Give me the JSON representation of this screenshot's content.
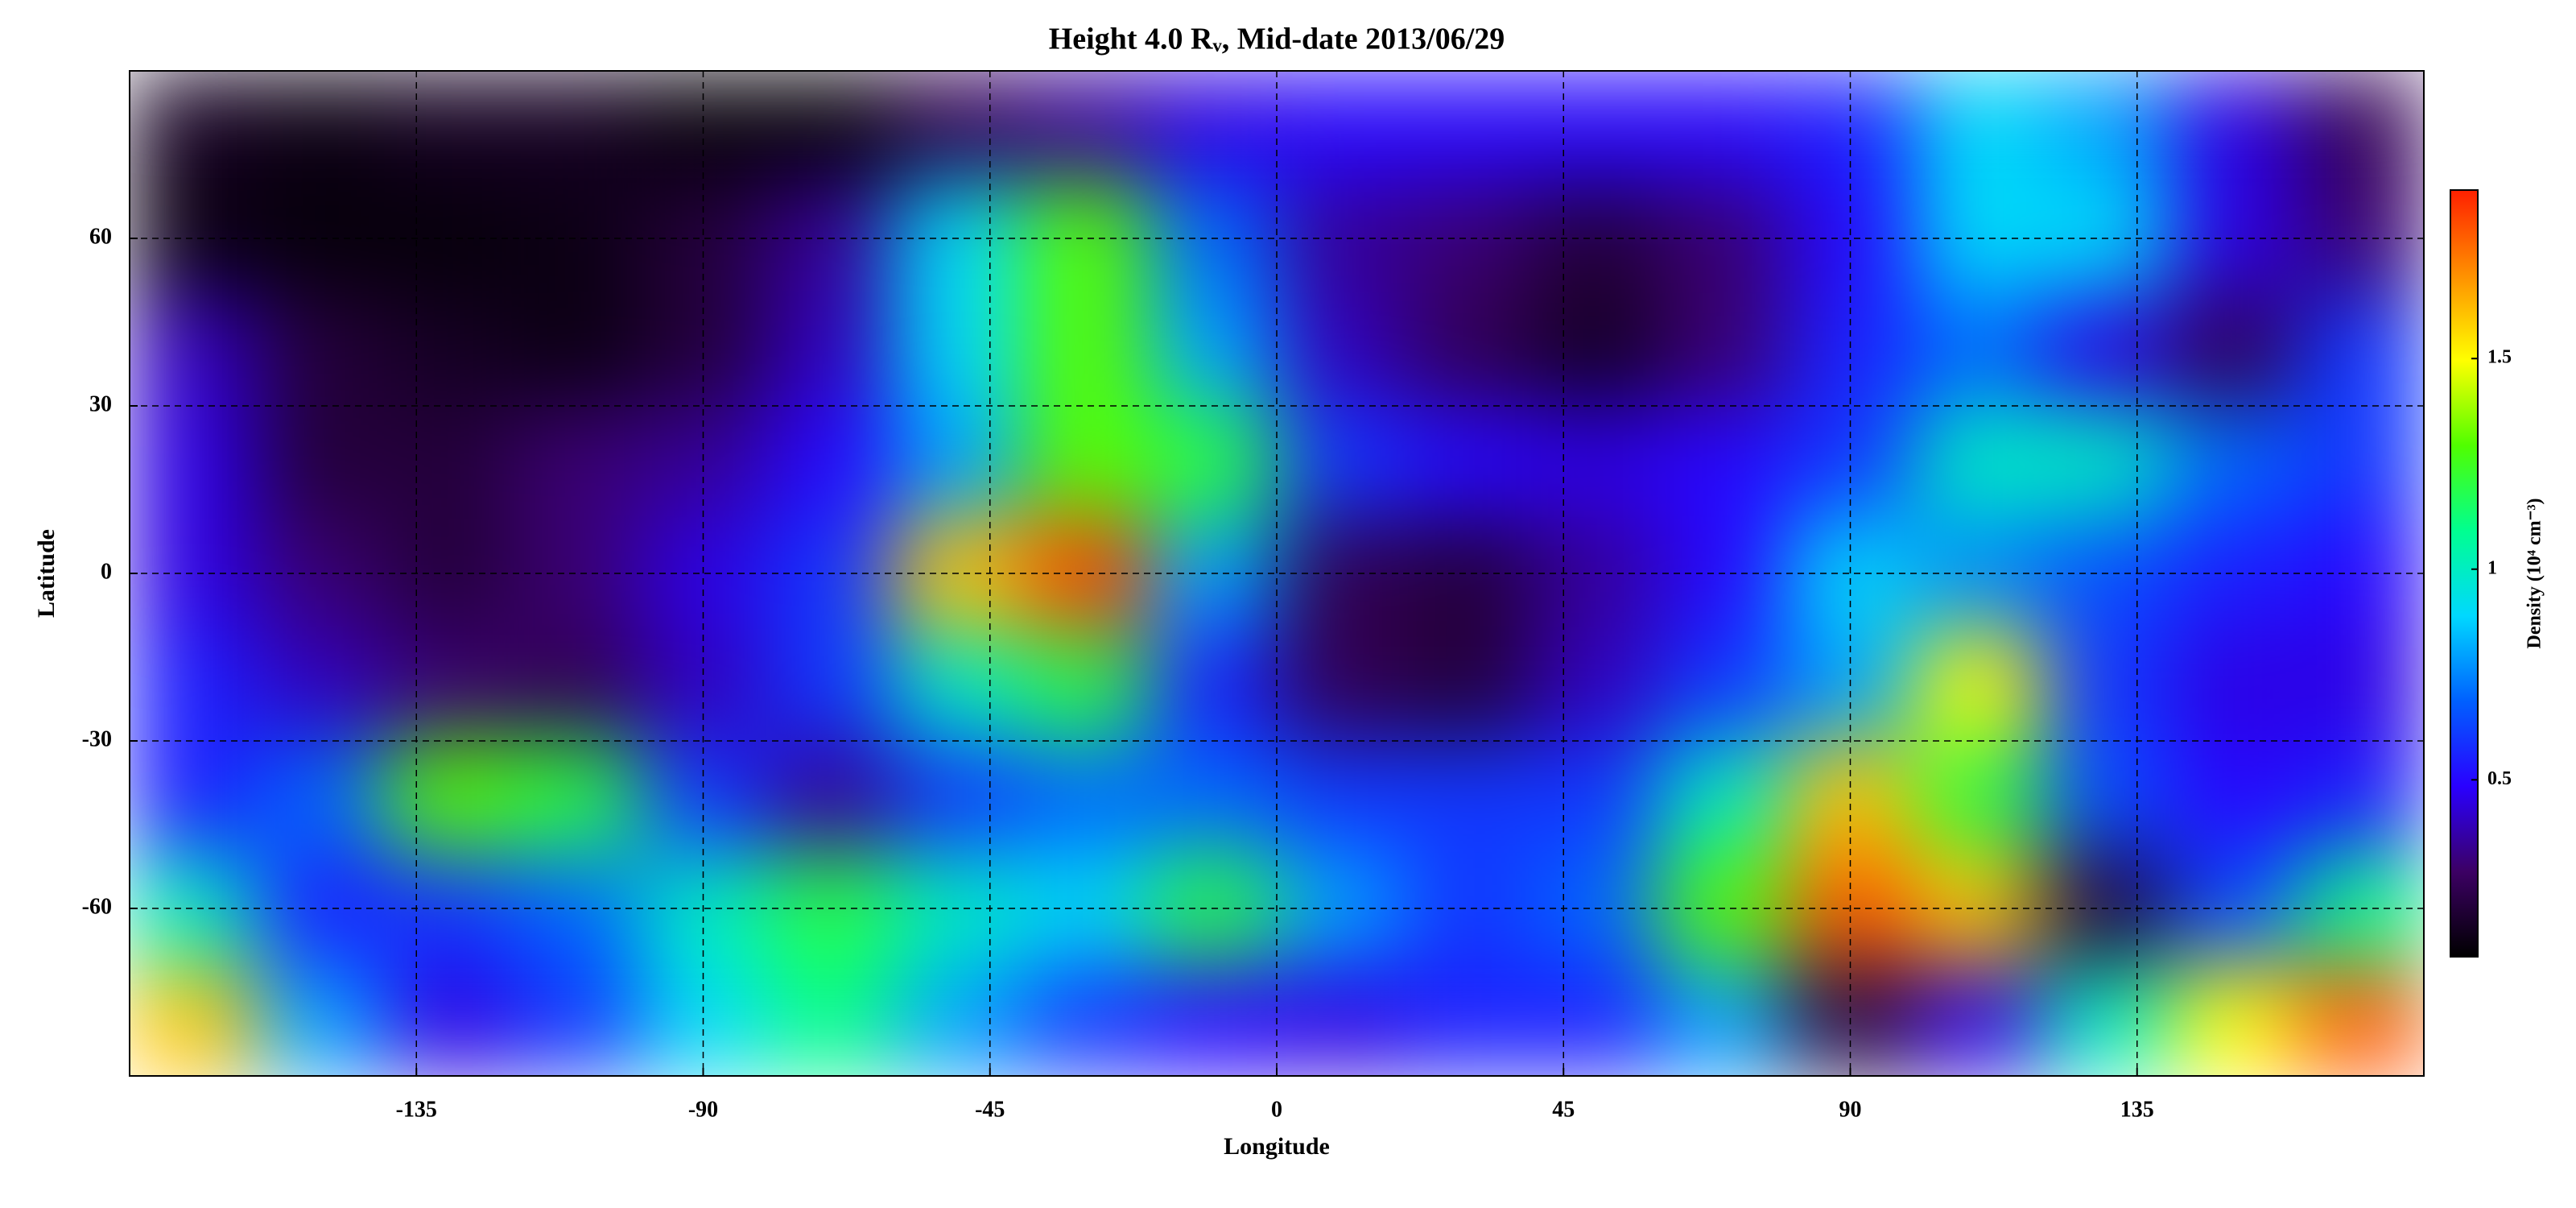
{
  "chart_data": {
    "type": "heatmap",
    "title": "Height 4.0 Rᵥ, Mid-date 2013/06/29",
    "x_label": "Longitude",
    "y_label": "Latitude",
    "colorbar_label": "Density (10⁴ cm⁻³)",
    "xlim": [
      -180,
      180
    ],
    "ylim": [
      -90,
      90
    ],
    "xticks": [
      -135,
      -90,
      -45,
      0,
      45,
      90,
      135
    ],
    "yticks": [
      -60,
      -30,
      0,
      30,
      60
    ],
    "clim": [
      0.08,
      1.9
    ],
    "cticks": [
      0.5,
      1.0,
      1.5
    ],
    "colormap": [
      "#000000",
      "#3c0064",
      "#2a00ff",
      "#0060ff",
      "#00d8ff",
      "#00ff90",
      "#50ff00",
      "#ffff00",
      "#ff9000",
      "#ff2000"
    ],
    "grid": true,
    "x": [
      -170,
      -150,
      -130,
      -110,
      -90,
      -70,
      -50,
      -30,
      -10,
      10,
      30,
      50,
      70,
      90,
      110,
      130,
      150,
      170
    ],
    "y": [
      80,
      60,
      40,
      20,
      0,
      -20,
      -40,
      -60,
      -80
    ],
    "z": [
      [
        0.15,
        0.12,
        0.15,
        0.15,
        0.1,
        0.1,
        0.25,
        0.35,
        0.45,
        0.5,
        0.5,
        0.5,
        0.5,
        0.55,
        0.9,
        0.8,
        0.45,
        0.25
      ],
      [
        0.12,
        0.1,
        0.1,
        0.12,
        0.2,
        0.35,
        0.9,
        1.3,
        0.7,
        0.35,
        0.3,
        0.2,
        0.3,
        0.5,
        0.9,
        0.9,
        0.45,
        0.3
      ],
      [
        0.4,
        0.2,
        0.15,
        0.12,
        0.2,
        0.4,
        0.9,
        1.3,
        0.8,
        0.4,
        0.25,
        0.15,
        0.3,
        0.55,
        0.7,
        0.45,
        0.25,
        0.6
      ],
      [
        0.45,
        0.2,
        0.2,
        0.3,
        0.35,
        0.5,
        0.8,
        1.3,
        1.2,
        0.6,
        0.5,
        0.45,
        0.5,
        0.6,
        1.0,
        1.0,
        0.7,
        0.6
      ],
      [
        0.45,
        0.3,
        0.2,
        0.3,
        0.45,
        0.6,
        1.6,
        1.85,
        0.8,
        0.25,
        0.2,
        0.35,
        0.5,
        0.9,
        0.75,
        0.65,
        0.55,
        0.5
      ],
      [
        0.55,
        0.4,
        0.3,
        0.25,
        0.4,
        0.6,
        1.0,
        1.2,
        0.55,
        0.25,
        0.2,
        0.4,
        0.6,
        0.8,
        1.5,
        0.6,
        0.45,
        0.45
      ],
      [
        0.55,
        0.7,
        1.3,
        1.2,
        0.6,
        0.35,
        0.6,
        0.7,
        0.7,
        0.6,
        0.6,
        0.6,
        1.0,
        1.6,
        1.2,
        0.65,
        0.5,
        0.55
      ],
      [
        1.0,
        0.55,
        0.6,
        0.7,
        1.0,
        1.2,
        1.0,
        0.9,
        1.2,
        0.8,
        0.6,
        0.7,
        1.3,
        1.8,
        1.6,
        0.2,
        0.65,
        1.1
      ],
      [
        1.6,
        0.8,
        0.45,
        0.6,
        0.9,
        1.1,
        0.8,
        0.6,
        0.5,
        0.45,
        0.55,
        0.55,
        0.8,
        0.2,
        0.45,
        1.0,
        1.5,
        1.8
      ]
    ]
  }
}
